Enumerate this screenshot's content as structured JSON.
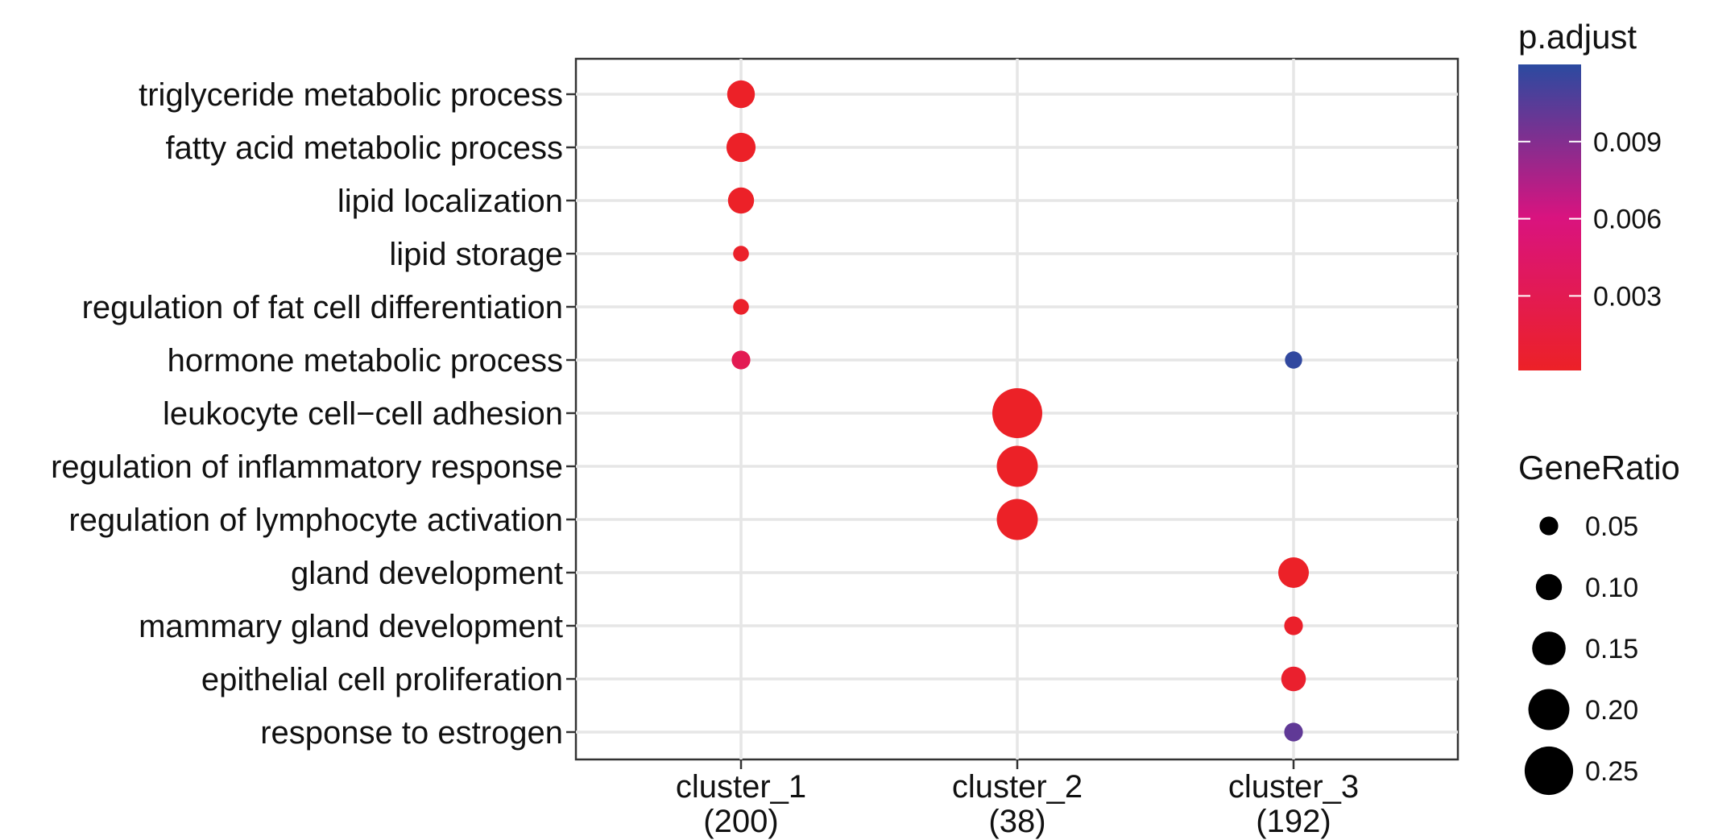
{
  "chart_data": {
    "type": "scatter",
    "x_categories": [
      {
        "name": "cluster_1",
        "count": "(200)"
      },
      {
        "name": "cluster_2",
        "count": "(38)"
      },
      {
        "name": "cluster_3",
        "count": "(192)"
      }
    ],
    "y_categories": [
      "triglyceride metabolic process",
      "fatty acid metabolic process",
      "lipid localization",
      "lipid storage",
      "regulation of fat cell differentiation",
      "hormone metabolic process",
      "leukocyte cell−cell adhesion",
      "regulation of inflammatory response",
      "regulation of lymphocyte activation",
      "gland development",
      "mammary gland development",
      "epithelial cell proliferation",
      "response to estrogen"
    ],
    "points": [
      {
        "x": "cluster_1",
        "y": "triglyceride metabolic process",
        "gene_ratio": 0.11,
        "p_adjust": 0.0002
      },
      {
        "x": "cluster_1",
        "y": "fatty acid metabolic process",
        "gene_ratio": 0.12,
        "p_adjust": 0.0002
      },
      {
        "x": "cluster_1",
        "y": "lipid localization",
        "gene_ratio": 0.1,
        "p_adjust": 0.0002
      },
      {
        "x": "cluster_1",
        "y": "lipid storage",
        "gene_ratio": 0.03,
        "p_adjust": 0.0003
      },
      {
        "x": "cluster_1",
        "y": "regulation of fat cell differentiation",
        "gene_ratio": 0.03,
        "p_adjust": 0.0003
      },
      {
        "x": "cluster_1",
        "y": "hormone metabolic process",
        "gene_ratio": 0.05,
        "p_adjust": 0.003
      },
      {
        "x": "cluster_3",
        "y": "hormone metabolic process",
        "gene_ratio": 0.04,
        "p_adjust": 0.0118
      },
      {
        "x": "cluster_2",
        "y": "leukocyte cell−cell adhesion",
        "gene_ratio": 0.26,
        "p_adjust": 0.0001
      },
      {
        "x": "cluster_2",
        "y": "regulation of inflammatory response",
        "gene_ratio": 0.2,
        "p_adjust": 0.0001
      },
      {
        "x": "cluster_2",
        "y": "regulation of lymphocyte activation",
        "gene_ratio": 0.2,
        "p_adjust": 0.0001
      },
      {
        "x": "cluster_3",
        "y": "gland development",
        "gene_ratio": 0.13,
        "p_adjust": 0.0002
      },
      {
        "x": "cluster_3",
        "y": "mammary gland development",
        "gene_ratio": 0.05,
        "p_adjust": 0.0004
      },
      {
        "x": "cluster_3",
        "y": "epithelial cell proliferation",
        "gene_ratio": 0.09,
        "p_adjust": 0.0006
      },
      {
        "x": "cluster_3",
        "y": "response to estrogen",
        "gene_ratio": 0.05,
        "p_adjust": 0.0102
      }
    ],
    "color_legend": {
      "title": "p.adjust",
      "range": [
        0.0001,
        0.012
      ],
      "ticks": [
        0.003,
        0.006,
        0.009
      ],
      "tick_labels": [
        "0.003",
        "0.006",
        "0.009"
      ],
      "low_color": "#ec2127",
      "mid_color": "#d9137f",
      "high_color": "#2b4aa0"
    },
    "size_legend": {
      "title": "GeneRatio",
      "values": [
        0.05,
        0.1,
        0.15,
        0.2,
        0.25
      ],
      "labels": [
        "0.05",
        "0.10",
        "0.15",
        "0.20",
        "0.25"
      ]
    },
    "grid": true,
    "legend_position": "right"
  }
}
